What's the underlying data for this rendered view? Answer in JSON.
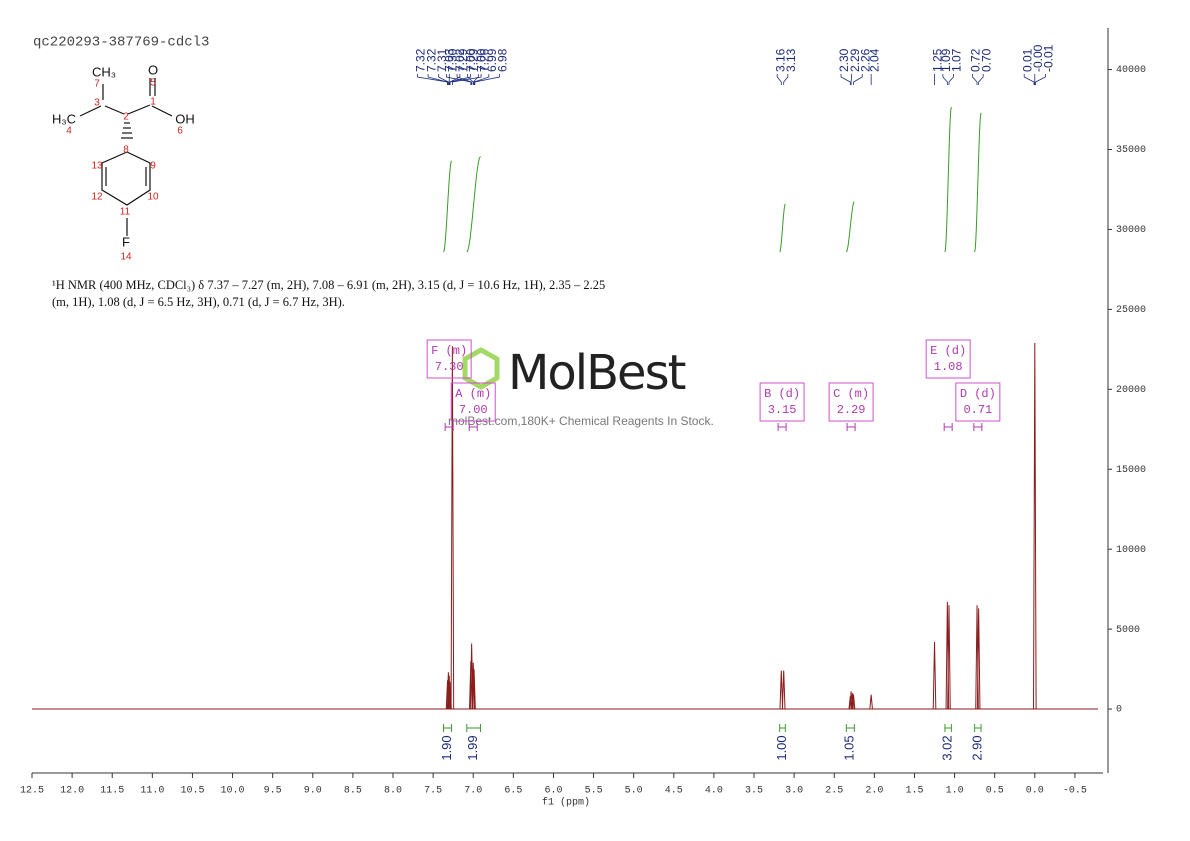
{
  "chart_data": {
    "type": "spectrum",
    "title": "qc220293-387769-cdcl3",
    "xlabel": "f1 (ppm)",
    "xlim": [
      12.5,
      -0.85
    ],
    "xticks": [
      12.5,
      {
        "value": 12,
        "label": "12.0"
      },
      11.5,
      {
        "value": 11,
        "label": "11.0"
      },
      10.5,
      {
        "value": 10,
        "label": "10.0"
      },
      9.5,
      {
        "value": 9,
        "label": "9.0"
      },
      8.5,
      {
        "value": 8,
        "label": "8.0"
      },
      7.5,
      {
        "value": 7,
        "label": "7.0"
      },
      6.5,
      {
        "value": 6,
        "label": "6.0"
      },
      5.5,
      {
        "value": 5,
        "label": "5.0"
      },
      4.5,
      {
        "value": 4,
        "label": "4.0"
      },
      3.5,
      {
        "value": 3,
        "label": "3.0"
      },
      2.5,
      {
        "value": 2,
        "label": "2.0"
      },
      1.5,
      {
        "value": 1,
        "label": "1.0"
      },
      0.5,
      {
        "value": 0,
        "label": "0.0"
      },
      -0.5
    ],
    "ylim": [
      -4000,
      42600
    ],
    "yticks": [
      0,
      5000,
      10000,
      15000,
      20000,
      25000,
      30000,
      35000,
      40000
    ],
    "color": "#8b1c1c",
    "x": [
      7.32,
      7.31,
      7.3,
      7.29,
      7.26,
      7.03,
      7.02,
      7.0,
      6.99,
      3.16,
      3.13,
      2.3,
      2.29,
      2.27,
      2.26,
      2.04,
      1.25,
      1.09,
      1.07,
      0.72,
      0.7,
      0.0
    ],
    "values": [
      1800,
      2300,
      2100,
      1700,
      22700,
      3000,
      4100,
      2900,
      2500,
      2400,
      2400,
      800,
      1100,
      1000,
      900,
      900,
      4200,
      6700,
      6500,
      6500,
      6300,
      22900
    ],
    "peak_labels": [
      7.32,
      7.32,
      7.31,
      {
        "value": 7.3,
        "label": "7.30"
      },
      7.29,
      7.29,
      7.26,
      7.03,
      7.02,
      {
        "value": 7,
        "label": "7.00"
      },
      {
        "value": 7,
        "label": "7.00"
      },
      6.99,
      6.98,
      3.16,
      3.13,
      {
        "value": 2.3,
        "label": "2.30"
      },
      2.29,
      2.26,
      2.04,
      1.25,
      1.09,
      1.07,
      0.72,
      {
        "value": 0.7,
        "label": "0.70"
      },
      0.01,
      {
        "value": 0,
        "label": "-0.00"
      },
      -0.01
    ],
    "integrals": [
      {
        "from": 7.37,
        "to": 7.27,
        "value": {
          "value": 1.9,
          "label": "1.90"
        }
      },
      {
        "from": 7.08,
        "to": 6.91,
        "value": {
          "value": 1.99,
          "label": "1.99"
        }
      },
      {
        "from": 3.18,
        "to": 3.11,
        "value": {
          "value": 1,
          "label": "1.00"
        }
      },
      {
        "from": 2.35,
        "to": 2.25,
        "value": {
          "value": 1.05,
          "label": "1.05"
        }
      },
      {
        "from": 1.12,
        "to": 1.04,
        "value": {
          "value": 3.02,
          "label": "3.02"
        }
      },
      {
        "from": 0.75,
        "to": 0.67,
        "value": {
          "value": 2.9,
          "label": "2.90"
        }
      }
    ],
    "multiplets": [
      {
        "name": "F (m)",
        "shift": {
          "value": 7.3,
          "label": "7.30"
        }
      },
      {
        "name": "A (m)",
        "shift": {
          "value": 7,
          "label": "7.00"
        }
      },
      {
        "name": "B (d)",
        "shift": 3.15
      },
      {
        "name": "C (m)",
        "shift": 2.29
      },
      {
        "name": "E (d)",
        "shift": 1.08
      },
      {
        "name": "D (d)",
        "shift": 0.71
      }
    ]
  },
  "molecule": {
    "atoms": [
      "CH₃",
      "7",
      "3",
      "5",
      "O",
      "1",
      "H₃C",
      "4",
      "2",
      "OH",
      "6",
      "8",
      "13",
      "9",
      "12",
      "10",
      "11",
      "F",
      "14"
    ]
  },
  "description": "¹H NMR (400 MHz, CDCl₃) δ 7.37 – 7.27 (m, 2H), 7.08 – 6.91 (m, 2H), 3.15 (d, J = 10.6 Hz, 1H), 2.35 – 2.25 (m, 1H), 1.08 (d, J = 6.5 Hz, 3H), 0.71 (d, J = 6.7 Hz, 3H).",
  "watermark": {
    "brand": "MolBest",
    "text": "molBest.com,180K+ Chemical Reagents In Stock."
  }
}
